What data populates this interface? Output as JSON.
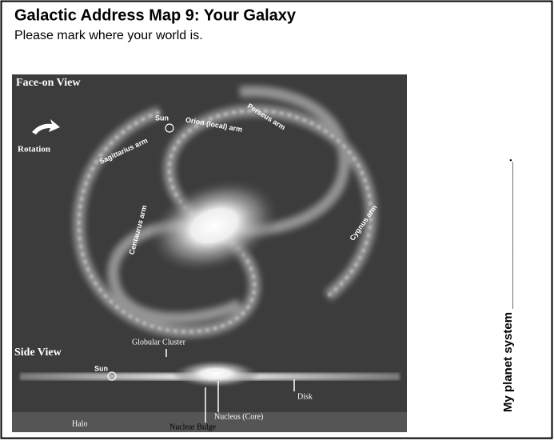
{
  "header": {
    "title": "Galactic Address Map 9: Your Galaxy",
    "instruction": "Please mark where your world is."
  },
  "figure": {
    "face_on": {
      "label": "Face-on View",
      "rotation": "Rotation",
      "sun": "Sun",
      "arms": [
        "Orion (local) arm",
        "Perseus arm",
        "Sagittarius arm",
        "Centaurus arm",
        "Cygnus arm"
      ]
    },
    "side": {
      "label": "Side View",
      "globular_cluster": "Globular Cluster",
      "sun": "Sun",
      "disk": "Disk",
      "nucleus": "Nucleus (Core)",
      "halo": "Halo",
      "bulge": "Nuclear Bulge"
    }
  },
  "answer": {
    "prompt": "My planet system ______________________."
  }
}
